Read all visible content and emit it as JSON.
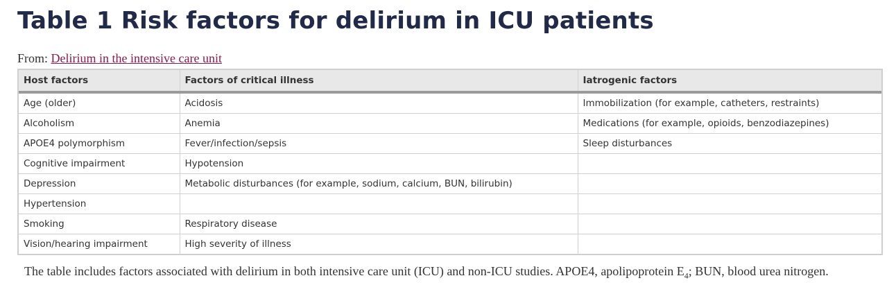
{
  "title": "Table 1 Risk factors for delirium in ICU patients",
  "from": {
    "label": "From:",
    "link_text": "Delirium in the intensive care unit"
  },
  "table": {
    "headers": [
      "Host factors",
      "Factors of critical illness",
      "Iatrogenic factors"
    ],
    "rows": [
      [
        "Age (older)",
        "Acidosis",
        "Immobilization (for example, catheters, restraints)"
      ],
      [
        "Alcoholism",
        "Anemia",
        "Medications (for example, opioids, benzodiazepines)"
      ],
      [
        "APOE4 polymorphism",
        "Fever/infection/sepsis",
        "Sleep disturbances"
      ],
      [
        "Cognitive impairment",
        "Hypotension",
        ""
      ],
      [
        "Depression",
        "Metabolic disturbances (for example, sodium, calcium, BUN, bilirubin)",
        ""
      ],
      [
        "Hypertension",
        "",
        ""
      ],
      [
        "Smoking",
        "Respiratory disease",
        ""
      ],
      [
        "Vision/hearing impairment",
        "High severity of illness",
        ""
      ]
    ]
  },
  "footnote": {
    "before": "The table includes factors associated with delirium in both intensive care unit (ICU) and non-ICU studies. APOE4, apolipoprotein E",
    "subscript": "4",
    "after": "; BUN, blood urea nitrogen."
  },
  "colors": {
    "title": "#222a4a",
    "link": "#8a1a4b",
    "header_bg": "#e8e8e8"
  }
}
